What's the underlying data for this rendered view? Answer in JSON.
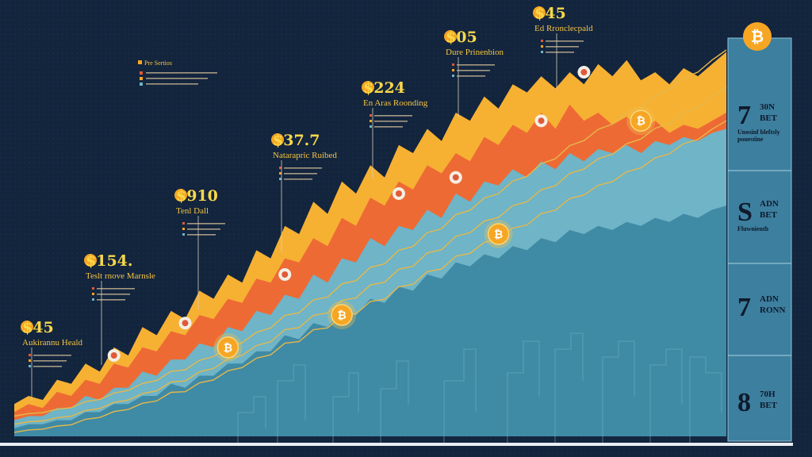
{
  "chart_data": {
    "type": "area",
    "title": "",
    "x": [
      0,
      1,
      2,
      3,
      4,
      5,
      6,
      7,
      8,
      9,
      10,
      11,
      12,
      13,
      14,
      15,
      16,
      17,
      18,
      19,
      20,
      21,
      22,
      23,
      24,
      25,
      26,
      27,
      28,
      29,
      30,
      31,
      32,
      33,
      34,
      35,
      36,
      37,
      38,
      39,
      40,
      41,
      42,
      43,
      44,
      45,
      46,
      47,
      48,
      49,
      50
    ],
    "series": [
      {
        "color": "#f6b133",
        "values": [
          8,
          10,
          9,
          14,
          13,
          18,
          16,
          22,
          20,
          27,
          25,
          31,
          29,
          36,
          34,
          40,
          38,
          46,
          44,
          52,
          50,
          58,
          55,
          63,
          60,
          67,
          64,
          72,
          70,
          76,
          73,
          80,
          78,
          84,
          81,
          87,
          85,
          89,
          86,
          90,
          87,
          92,
          89,
          93,
          88,
          90,
          87,
          91,
          89,
          92,
          95
        ]
      },
      {
        "color": "#ee6a34",
        "values": [
          6,
          8,
          7,
          11,
          10,
          14,
          13,
          18,
          17,
          22,
          21,
          26,
          25,
          30,
          29,
          34,
          33,
          39,
          38,
          44,
          43,
          49,
          47,
          54,
          52,
          59,
          57,
          63,
          61,
          67,
          65,
          70,
          68,
          74,
          72,
          77,
          75,
          80,
          76,
          82,
          78,
          80,
          77,
          79,
          76,
          78,
          75,
          77,
          76,
          78,
          80
        ]
      },
      {
        "color": "#6fb4c7",
        "values": [
          4,
          5,
          5,
          7,
          7,
          10,
          9,
          12,
          12,
          16,
          15,
          19,
          19,
          23,
          22,
          27,
          26,
          31,
          30,
          35,
          34,
          40,
          38,
          44,
          43,
          49,
          47,
          52,
          51,
          56,
          54,
          60,
          58,
          63,
          62,
          66,
          64,
          68,
          66,
          70,
          68,
          71,
          70,
          72,
          70,
          73,
          72,
          74,
          73,
          75,
          76
        ]
      },
      {
        "color": "#3f8aa5",
        "values": [
          2,
          3,
          3,
          4,
          4,
          6,
          6,
          8,
          8,
          10,
          10,
          13,
          12,
          15,
          15,
          18,
          18,
          21,
          21,
          25,
          24,
          28,
          27,
          31,
          30,
          34,
          33,
          37,
          36,
          40,
          39,
          43,
          42,
          45,
          44,
          47,
          46,
          49,
          48,
          51,
          50,
          52,
          51,
          53,
          52,
          54,
          53,
          55,
          54,
          56,
          57
        ]
      }
    ],
    "ylim": [
      0,
      100
    ],
    "grid": false,
    "legend": "none",
    "annotations": [
      {
        "value": "$45",
        "caption": "Aukirannu Heald"
      },
      {
        "value": "$154.",
        "caption": "Teslt rnove Marnsle"
      },
      {
        "value": "$910",
        "caption": "Tenl Dall"
      },
      {
        "value": "$37.7",
        "caption": "Natarapric Ruibed"
      },
      {
        "value": "$224",
        "caption": "En Aras Roonding"
      },
      {
        "value": "$05",
        "caption": "Dure Prinenbion"
      },
      {
        "value": "$45",
        "caption": "Ed Rronclecpald"
      },
      {
        "value": "Pre Sertios",
        "caption": ""
      }
    ]
  },
  "sidebar": {
    "stats": [
      {
        "num": "7",
        "unit": "30N",
        "sub": "BET",
        "desc": "Unosinf bleftsly pouestine"
      },
      {
        "num": "S",
        "unit": "ADN",
        "sub": "BET",
        "desc": "Fluwnienth"
      },
      {
        "num": "7",
        "unit": "ADN",
        "sub": "RONN",
        "desc": ""
      },
      {
        "num": "8",
        "unit": "70H",
        "sub": "BET",
        "desc": ""
      }
    ]
  },
  "colors": {
    "background": "#13243d",
    "sidebar": "#3d7f9f",
    "coin": "#f6a623",
    "accent_yellow": "#f8d84a",
    "line": "#e6b84a"
  }
}
